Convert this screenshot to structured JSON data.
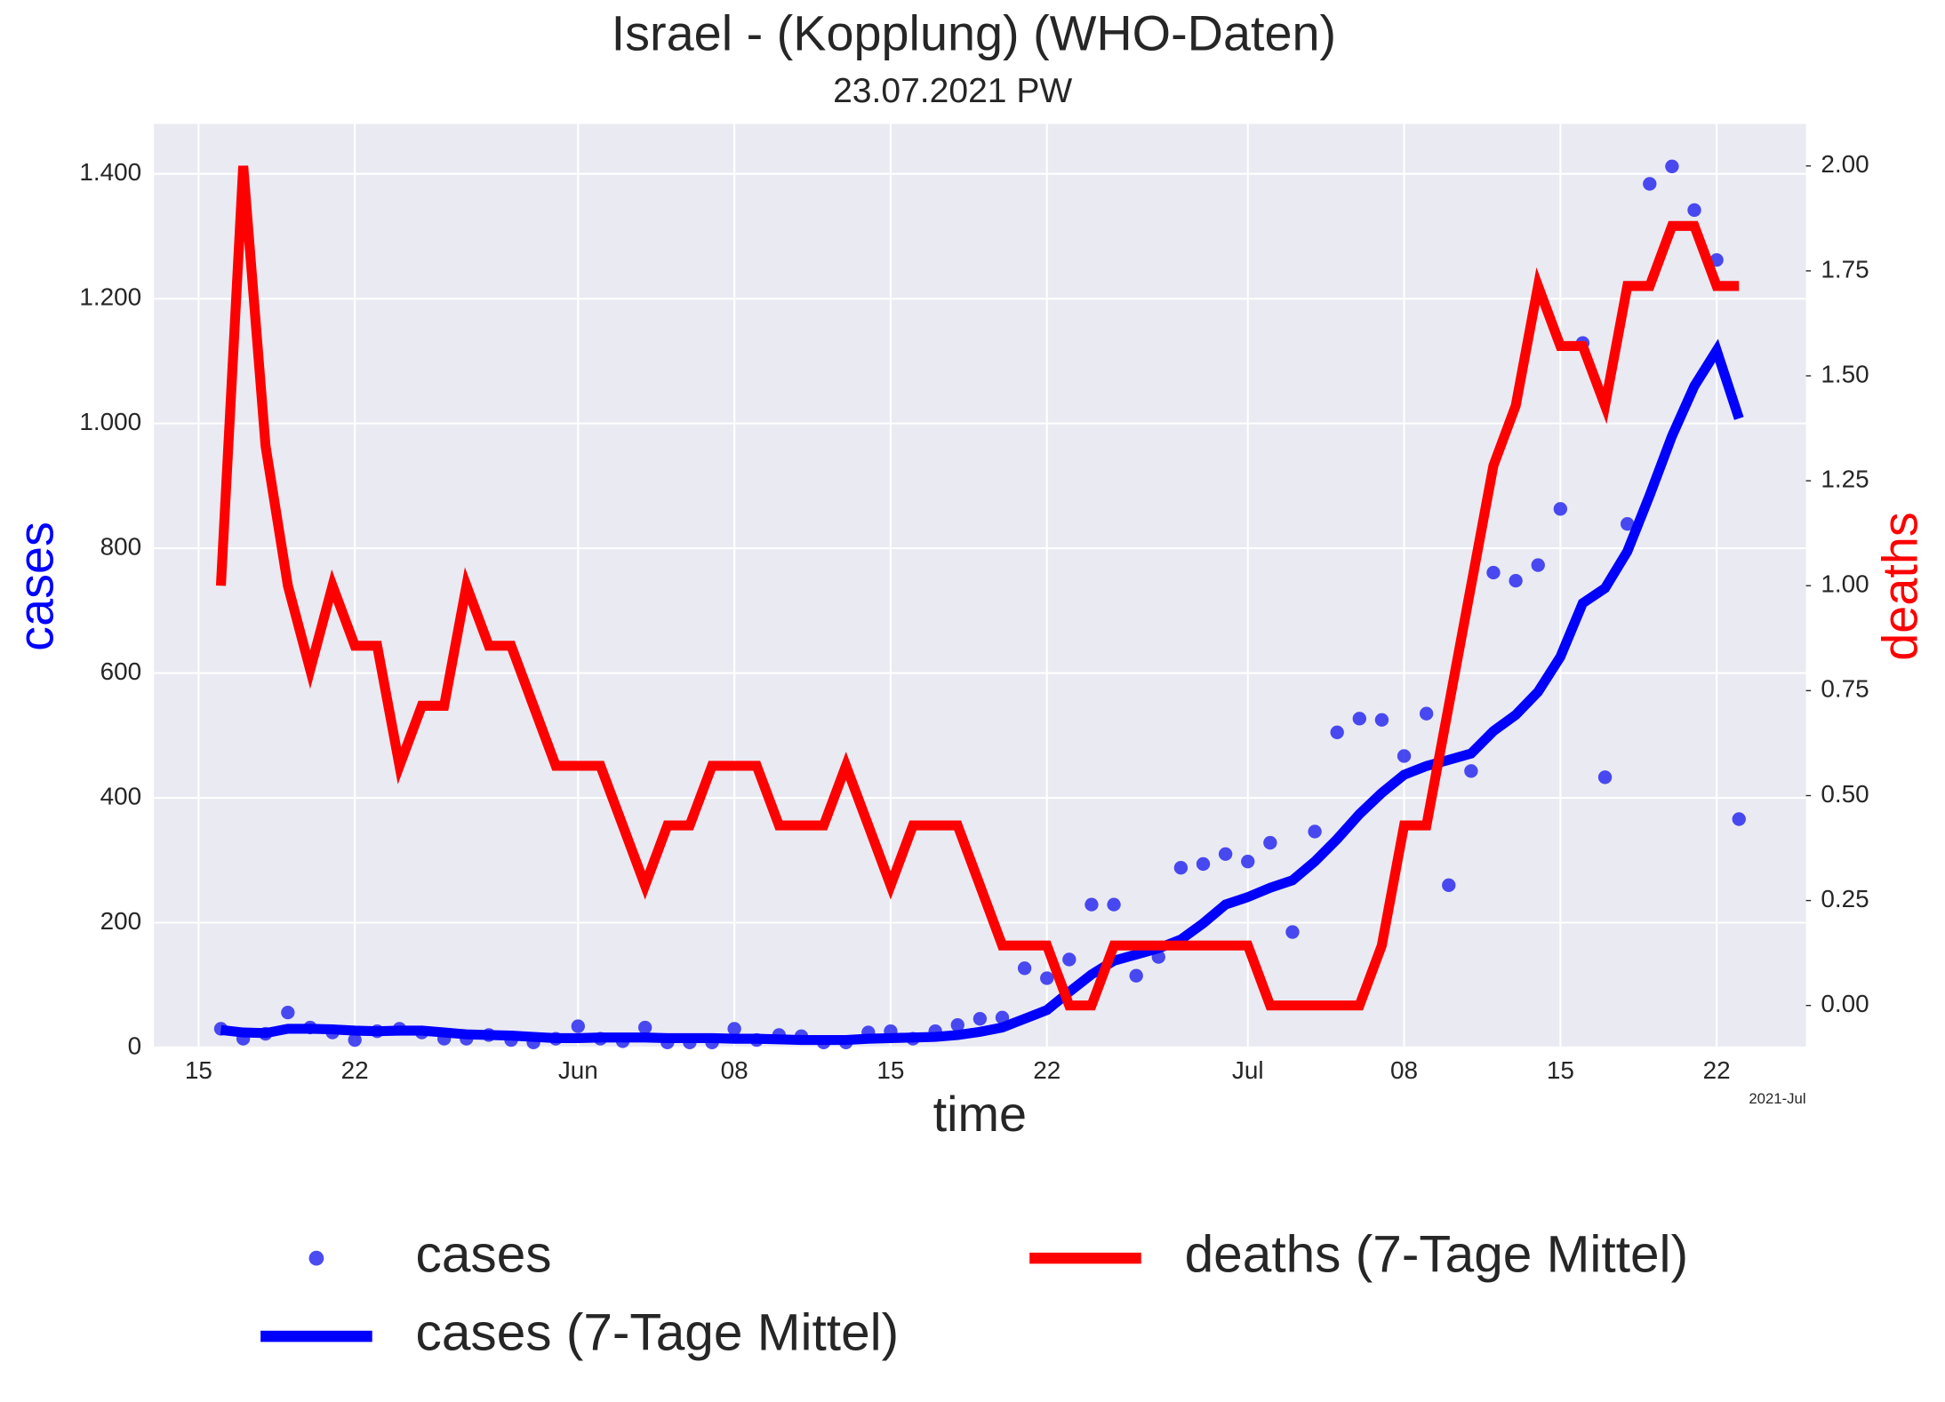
{
  "chart_data": {
    "type": "line",
    "title": "Israel - (Kopplung)  (WHO-Daten)",
    "subtitle": "23.07.2021 PW",
    "xlabel": "time",
    "ylabel": "cases",
    "y2label": "deaths",
    "x_offset_label": "2021-Jul",
    "x": [
      "2021-05-16",
      "2021-05-17",
      "2021-05-18",
      "2021-05-19",
      "2021-05-20",
      "2021-05-21",
      "2021-05-22",
      "2021-05-23",
      "2021-05-24",
      "2021-05-25",
      "2021-05-26",
      "2021-05-27",
      "2021-05-28",
      "2021-05-29",
      "2021-05-30",
      "2021-05-31",
      "2021-06-01",
      "2021-06-02",
      "2021-06-03",
      "2021-06-04",
      "2021-06-05",
      "2021-06-06",
      "2021-06-07",
      "2021-06-08",
      "2021-06-09",
      "2021-06-10",
      "2021-06-11",
      "2021-06-12",
      "2021-06-13",
      "2021-06-14",
      "2021-06-15",
      "2021-06-16",
      "2021-06-17",
      "2021-06-18",
      "2021-06-19",
      "2021-06-20",
      "2021-06-21",
      "2021-06-22",
      "2021-06-23",
      "2021-06-24",
      "2021-06-25",
      "2021-06-26",
      "2021-06-27",
      "2021-06-28",
      "2021-06-29",
      "2021-06-30",
      "2021-07-01",
      "2021-07-02",
      "2021-07-03",
      "2021-07-04",
      "2021-07-05",
      "2021-07-06",
      "2021-07-07",
      "2021-07-08",
      "2021-07-09",
      "2021-07-10",
      "2021-07-11",
      "2021-07-12",
      "2021-07-13",
      "2021-07-14",
      "2021-07-15",
      "2021-07-16",
      "2021-07-17",
      "2021-07-18",
      "2021-07-19",
      "2021-07-20",
      "2021-07-21",
      "2021-07-22",
      "2021-07-23"
    ],
    "series": [
      {
        "name": "cases",
        "style": "scatter",
        "axis": "y",
        "color": "#2b2bf0",
        "values": [
          30,
          14,
          22,
          56,
          32,
          24,
          12,
          26,
          30,
          24,
          14,
          14,
          20,
          12,
          8,
          14,
          34,
          14,
          10,
          32,
          8,
          8,
          8,
          30,
          12,
          20,
          18,
          8,
          8,
          24,
          26,
          14,
          26,
          36,
          46,
          48,
          127,
          111,
          141,
          229,
          229,
          115,
          145,
          288,
          294,
          310,
          298,
          328,
          185,
          346,
          505,
          527,
          525,
          467,
          535,
          260,
          443,
          761,
          748,
          773,
          863,
          1129,
          433,
          839,
          1384,
          1412,
          1342,
          1262,
          366
        ]
      },
      {
        "name": "cases (7-Tage Mittel)",
        "style": "line",
        "axis": "y",
        "color": "#0000ff",
        "values": [
          28,
          24,
          23,
          30,
          30,
          29,
          27,
          26,
          27,
          27,
          24,
          21,
          20,
          19,
          17,
          15,
          15,
          16,
          16,
          16,
          15,
          15,
          15,
          14,
          14,
          13,
          12,
          12,
          12,
          14,
          15,
          16,
          17,
          20,
          25,
          32,
          46,
          60,
          89,
          117,
          139,
          149,
          159,
          173,
          199,
          229,
          241,
          256,
          268,
          298,
          334,
          374,
          408,
          437,
          451,
          461,
          471,
          507,
          533,
          570,
          626,
          712,
          736,
          795,
          885,
          980,
          1060,
          1117,
          1008
        ]
      },
      {
        "name": "deaths (7-Tage Mittel)",
        "style": "line",
        "axis": "y2",
        "color": "#ff0000",
        "values": [
          1.0,
          2.0,
          1.333,
          1.0,
          0.8,
          1.0,
          0.857,
          0.857,
          0.571,
          0.714,
          0.714,
          1.0,
          0.857,
          0.857,
          0.714,
          0.571,
          0.571,
          0.571,
          0.429,
          0.286,
          0.429,
          0.429,
          0.571,
          0.571,
          0.571,
          0.429,
          0.429,
          0.429,
          0.571,
          0.429,
          0.286,
          0.429,
          0.429,
          0.429,
          0.286,
          0.143,
          0.143,
          0.143,
          0,
          0,
          0.143,
          0.143,
          0.143,
          0.143,
          0.143,
          0.143,
          0.143,
          0,
          0,
          0,
          0,
          0,
          0.143,
          0.429,
          0.429,
          0.714,
          1.0,
          1.286,
          1.429,
          1.714,
          1.571,
          1.571,
          1.429,
          1.714,
          1.714,
          1.857,
          1.857,
          1.714,
          1.714
        ]
      }
    ],
    "xlim": [
      "2021-05-13",
      "2021-07-26"
    ],
    "xticks": [
      {
        "value": "2021-05-15",
        "label": "15"
      },
      {
        "value": "2021-05-22",
        "label": "22"
      },
      {
        "value": "2021-06-01",
        "label": "Jun"
      },
      {
        "value": "2021-06-08",
        "label": "08"
      },
      {
        "value": "2021-06-15",
        "label": "15"
      },
      {
        "value": "2021-06-22",
        "label": "22"
      },
      {
        "value": "2021-07-01",
        "label": "Jul"
      },
      {
        "value": "2021-07-08",
        "label": "08"
      },
      {
        "value": "2021-07-15",
        "label": "15"
      },
      {
        "value": "2021-07-22",
        "label": "22"
      }
    ],
    "ylim": [
      0,
      1480
    ],
    "yticks": [
      0,
      200,
      400,
      600,
      800,
      {
        "value": 1000,
        "label": "1.000"
      },
      {
        "value": 1200,
        "label": "1.200"
      },
      {
        "value": 1400,
        "label": "1.400"
      }
    ],
    "y2lim": [
      -0.1,
      2.1
    ],
    "y2ticks": [
      {
        "value": 0,
        "label": "0.00"
      },
      {
        "value": 0.25,
        "label": "0.25"
      },
      {
        "value": 0.5,
        "label": "0.50"
      },
      {
        "value": 0.75,
        "label": "0.75"
      },
      {
        "value": 1,
        "label": "1.00"
      },
      {
        "value": 1.25,
        "label": "1.25"
      },
      {
        "value": 1.5,
        "label": "1.50"
      },
      {
        "value": 1.75,
        "label": "1.75"
      },
      {
        "value": 2,
        "label": "2.00"
      }
    ],
    "grid": true,
    "ylabel_color": "#0000ff",
    "y2label_color": "#ff0000",
    "legend": "bottom"
  }
}
